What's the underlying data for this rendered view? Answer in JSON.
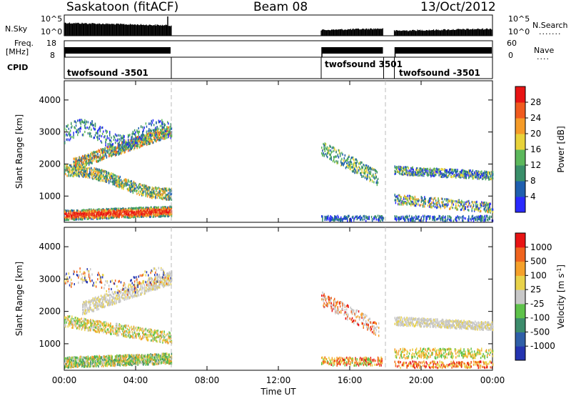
{
  "header": {
    "station": "Saskatoon (fitACF)",
    "beam": "Beam 08",
    "date": "13/Oct/2012"
  },
  "top_panels": {
    "nsky_label": "N.Sky",
    "nsky_ticks": [
      "10^5",
      "10^0"
    ],
    "nsearch_label": "N.Search",
    "nsearch_ticks": [
      "10^5",
      "10^0"
    ],
    "freq_label": "Freq.",
    "freq_unit": "[MHz]",
    "freq_ticks": [
      "18",
      "8"
    ],
    "nave_label": "Nave",
    "nave_ticks": [
      "60",
      "0"
    ],
    "cpid_label": "CPID",
    "cpid_segments": [
      "twofsound -3501",
      "twofsound 3501",
      "twofsound -3501"
    ]
  },
  "chart_data": [
    {
      "type": "heatmap",
      "name": "power",
      "ylabel": "Slant Range [km]",
      "xlabel": "",
      "xticks": [
        "00:00",
        "04:00",
        "08:00",
        "12:00",
        "16:00",
        "20:00",
        "00:00"
      ],
      "x_hours": [
        0,
        4,
        8,
        12,
        16,
        20,
        24
      ],
      "yticks": [
        1000,
        2000,
        3000,
        4000
      ],
      "ylim": [
        180,
        4600
      ],
      "xlim": [
        0,
        24
      ],
      "colorbar_label": "Power [dB]",
      "colorbar_ticks": [
        "28",
        "24",
        "20",
        "16",
        "12",
        "8",
        "4"
      ],
      "colors": [
        "#2a2aff",
        "#1f5faf",
        "#3a8f6a",
        "#5cb85c",
        "#e8d23a",
        "#f59b28",
        "#f05a1e",
        "#e81414"
      ]
    },
    {
      "type": "heatmap",
      "name": "velocity",
      "ylabel": "Slant Range [km]",
      "xlabel": "Time UT",
      "xticks": [
        "00:00",
        "04:00",
        "08:00",
        "12:00",
        "16:00",
        "20:00",
        "00:00"
      ],
      "x_hours": [
        0,
        4,
        8,
        12,
        16,
        20,
        24
      ],
      "yticks": [
        1000,
        2000,
        3000,
        4000
      ],
      "ylim": [
        180,
        4600
      ],
      "xlim": [
        0,
        24
      ],
      "colorbar_label": "Velocity [m s",
      "colorbar_label_sup": "-1",
      "colorbar_label_close": "]",
      "colorbar_ticks": [
        "1000",
        "500",
        "100",
        "25",
        "-25",
        "-100",
        "-500",
        "-1000"
      ],
      "colors": [
        "#2434b0",
        "#2f5fa8",
        "#3c8c6c",
        "#5ec24a",
        "#c8c8c8",
        "#e8d24a",
        "#f5a02a",
        "#f0641e",
        "#e81414"
      ]
    }
  ],
  "data_gaps_hours": [
    [
      6.0,
      14.4
    ],
    [
      17.9,
      18.5
    ]
  ],
  "dashed_lines_hours": [
    6.0,
    18.0
  ]
}
